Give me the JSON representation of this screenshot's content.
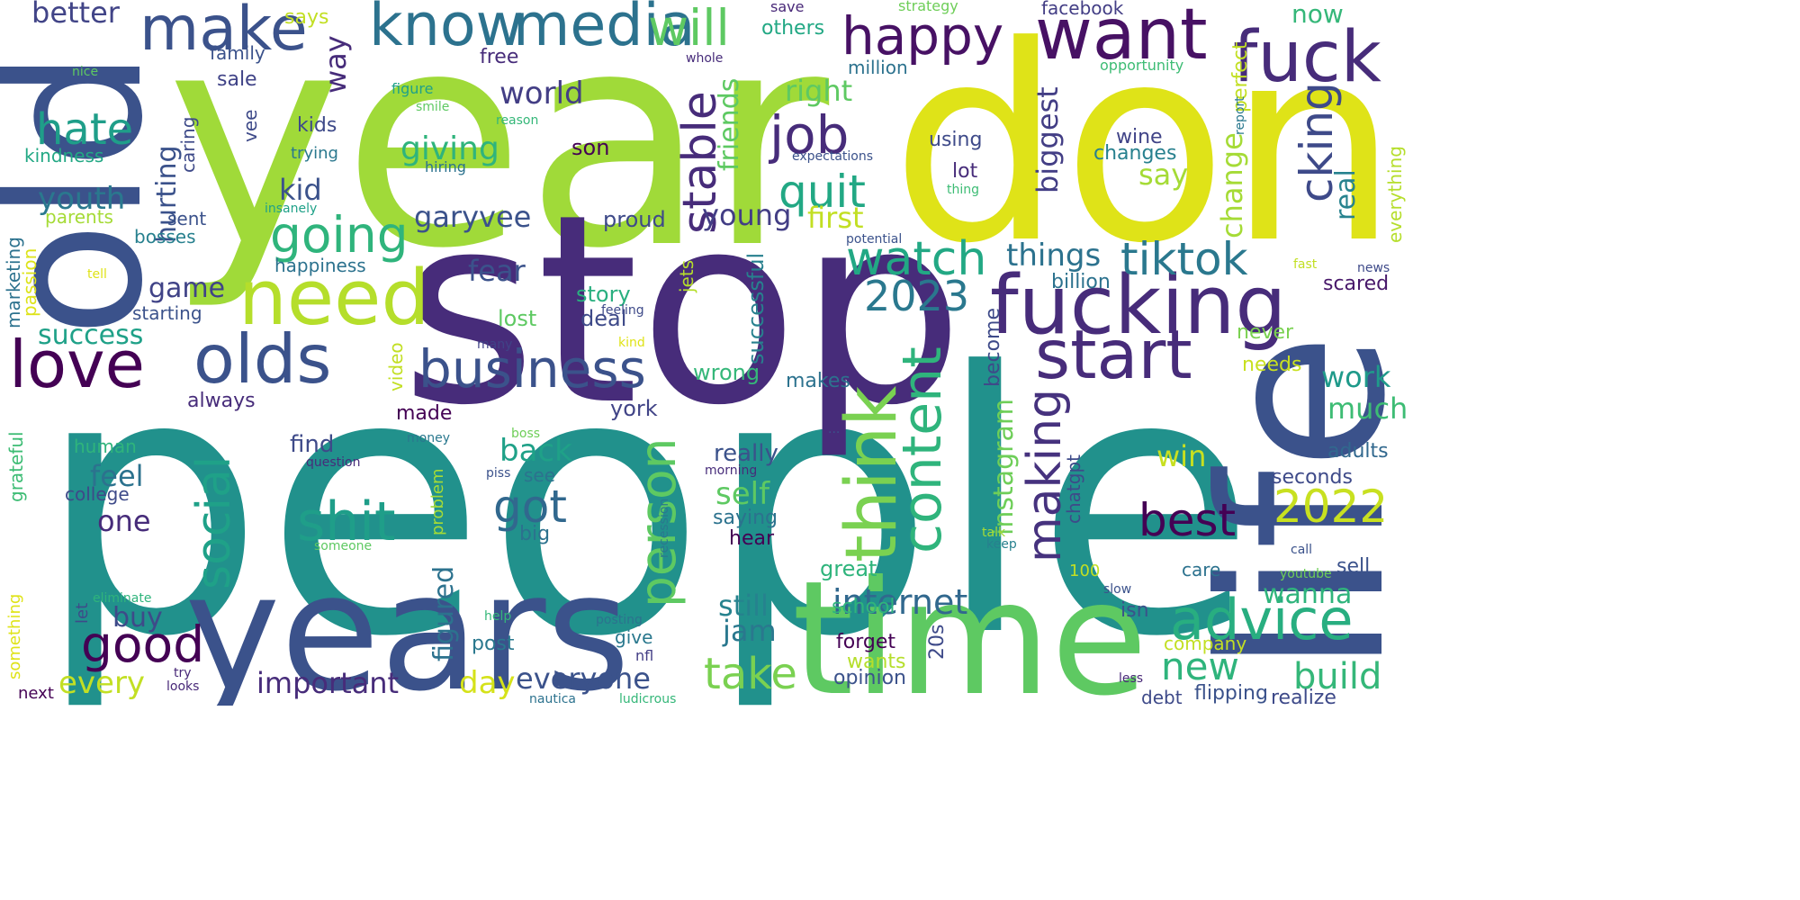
{
  "words": [
    {
      "text": "people",
      "color": "#21918c"
    },
    {
      "text": "year",
      "color": "#a0da39"
    },
    {
      "text": "don",
      "color": "#dfe318"
    },
    {
      "text": "stop",
      "color": "#472c7a"
    },
    {
      "text": "life",
      "color": "#3b528b"
    },
    {
      "text": "old",
      "color": "#3b528b"
    },
    {
      "text": "years",
      "color": "#3b528b"
    },
    {
      "text": "time",
      "color": "#5ec962"
    },
    {
      "text": "want",
      "color": "#471164"
    },
    {
      "text": "fuck",
      "color": "#472c7a"
    },
    {
      "text": "fucking",
      "color": "#472c7a"
    },
    {
      "text": "know",
      "color": "#2c728e"
    },
    {
      "text": "media",
      "color": "#2c728e"
    },
    {
      "text": "make",
      "color": "#3b528b"
    },
    {
      "text": "will",
      "color": "#5ec962"
    },
    {
      "text": "happy",
      "color": "#471164"
    },
    {
      "text": "need",
      "color": "#b5de2b"
    },
    {
      "text": "olds",
      "color": "#3b528b"
    },
    {
      "text": "love",
      "color": "#440154"
    },
    {
      "text": "business",
      "color": "#3b528b"
    },
    {
      "text": "think",
      "color": "#7ad151"
    },
    {
      "text": "start",
      "color": "#472c7a"
    },
    {
      "text": "content",
      "color": "#2fb47c"
    },
    {
      "text": "advice",
      "color": "#28ae80"
    },
    {
      "text": "shit",
      "color": "#1f9e89"
    },
    {
      "text": "good",
      "color": "#440154"
    },
    {
      "text": "job",
      "color": "#472c7a"
    },
    {
      "text": "quit",
      "color": "#22a884"
    },
    {
      "text": "going",
      "color": "#2fb47c"
    },
    {
      "text": "watch",
      "color": "#22a884"
    },
    {
      "text": "social",
      "color": "#1fa188"
    },
    {
      "text": "person",
      "color": "#5ec962"
    },
    {
      "text": "stable",
      "color": "#472c7a"
    },
    {
      "text": "tiktok",
      "color": "#2a788e"
    },
    {
      "text": "cking",
      "color": "#3e4a89"
    },
    {
      "text": "making",
      "color": "#46327e"
    },
    {
      "text": "hate",
      "color": "#1f9e89"
    },
    {
      "text": "take",
      "color": "#7ad151"
    },
    {
      "text": "best",
      "color": "#440154"
    },
    {
      "text": "2023",
      "color": "#2a788e"
    },
    {
      "text": "2022",
      "color": "#c8e020"
    },
    {
      "text": "got",
      "color": "#31688e"
    },
    {
      "text": "important",
      "color": "#472c7a"
    },
    {
      "text": "everyone",
      "color": "#3b528b"
    },
    {
      "text": "internet",
      "color": "#31688e"
    },
    {
      "text": "new",
      "color": "#2fb47c"
    },
    {
      "text": "build",
      "color": "#35b779"
    },
    {
      "text": "instagram",
      "color": "#6ece58"
    },
    {
      "text": "better",
      "color": "#414487"
    },
    {
      "text": "youth",
      "color": "#2a788e"
    },
    {
      "text": "fear",
      "color": "#3b528b"
    },
    {
      "text": "world",
      "color": "#433e85"
    },
    {
      "text": "giving",
      "color": "#2fb47c"
    },
    {
      "text": "garyvee",
      "color": "#3b528b"
    },
    {
      "text": "friends",
      "color": "#5ec962"
    },
    {
      "text": "right",
      "color": "#5ec962"
    },
    {
      "text": "first",
      "color": "#c2df23"
    },
    {
      "text": "young",
      "color": "#433e85"
    },
    {
      "text": "things",
      "color": "#2c728e"
    },
    {
      "text": "biggest",
      "color": "#433e85"
    },
    {
      "text": "change",
      "color": "#a5db36"
    },
    {
      "text": "real",
      "color": "#26828e"
    },
    {
      "text": "say",
      "color": "#a5db36"
    },
    {
      "text": "work",
      "color": "#1f9a8a"
    },
    {
      "text": "much",
      "color": "#3dbc74"
    },
    {
      "text": "win",
      "color": "#c8e020"
    },
    {
      "text": "feel",
      "color": "#2c728e"
    },
    {
      "text": "one",
      "color": "#472c7a"
    },
    {
      "text": "buy",
      "color": "#3e4a89"
    },
    {
      "text": "back",
      "color": "#1fa188"
    },
    {
      "text": "self",
      "color": "#5ec962"
    },
    {
      "text": "still",
      "color": "#26828e"
    },
    {
      "text": "jam",
      "color": "#2a788e"
    },
    {
      "text": "wanna",
      "color": "#2fb47c"
    },
    {
      "text": "kid",
      "color": "#3b528b"
    },
    {
      "text": "game",
      "color": "#404387"
    },
    {
      "text": "hurting",
      "color": "#3b528b"
    },
    {
      "text": "success",
      "color": "#1fa188"
    },
    {
      "text": "every",
      "color": "#c2df23"
    },
    {
      "text": "day",
      "color": "#d5e21a"
    },
    {
      "text": "figured",
      "color": "#2c728e"
    },
    {
      "text": "story",
      "color": "#29af7f"
    },
    {
      "text": "deal",
      "color": "#3e4a89"
    },
    {
      "text": "lost",
      "color": "#5ec962"
    },
    {
      "text": "proud",
      "color": "#3e4a89"
    },
    {
      "text": "son",
      "color": "#440154"
    },
    {
      "text": "find",
      "color": "#3e4a89"
    },
    {
      "text": "made",
      "color": "#440154"
    },
    {
      "text": "york",
      "color": "#414487"
    },
    {
      "text": "really",
      "color": "#3b528b"
    },
    {
      "text": "saying",
      "color": "#2c728e"
    },
    {
      "text": "hear",
      "color": "#440154"
    },
    {
      "text": "successful",
      "color": "#27808e"
    },
    {
      "text": "wrong",
      "color": "#35b779"
    },
    {
      "text": "makes",
      "color": "#2c728e"
    },
    {
      "text": "become",
      "color": "#3e4a89"
    },
    {
      "text": "billion",
      "color": "#2c728e"
    },
    {
      "text": "never",
      "color": "#7ad151"
    },
    {
      "text": "scared",
      "color": "#48186a"
    },
    {
      "text": "needs",
      "color": "#c8e020"
    },
    {
      "text": "perfect",
      "color": "#c2df23"
    },
    {
      "text": "now",
      "color": "#35b779"
    },
    {
      "text": "facebook",
      "color": "#433e85"
    },
    {
      "text": "opportunity",
      "color": "#3dbc74"
    },
    {
      "text": "report",
      "color": "#2a788e"
    },
    {
      "text": "everything",
      "color": "#b5de2b"
    },
    {
      "text": "news",
      "color": "#3e4a89"
    },
    {
      "text": "fast",
      "color": "#c2df23"
    },
    {
      "text": "strategy",
      "color": "#6ece58"
    },
    {
      "text": "save",
      "color": "#482878"
    },
    {
      "text": "others",
      "color": "#22a884"
    },
    {
      "text": "whole",
      "color": "#472c7a"
    },
    {
      "text": "million",
      "color": "#2c728e"
    },
    {
      "text": "says",
      "color": "#c2df23"
    },
    {
      "text": "family",
      "color": "#3b528b"
    },
    {
      "text": "sale",
      "color": "#404387"
    },
    {
      "text": "free",
      "color": "#472c7a"
    },
    {
      "text": "way",
      "color": "#472c7a"
    },
    {
      "text": "nice",
      "color": "#5ec962"
    },
    {
      "text": "figure",
      "color": "#1fa188"
    },
    {
      "text": "smile",
      "color": "#5ec962"
    },
    {
      "text": "reason",
      "color": "#35b779"
    },
    {
      "text": "kids",
      "color": "#3e4a89"
    },
    {
      "text": "trying",
      "color": "#2a788e"
    },
    {
      "text": "hiring",
      "color": "#2c728e"
    },
    {
      "text": "vee",
      "color": "#3e4a89"
    },
    {
      "text": "caring",
      "color": "#3e4a89"
    },
    {
      "text": "kindness",
      "color": "#22a884"
    },
    {
      "text": "sent",
      "color": "#3b528b"
    },
    {
      "text": "bosses",
      "color": "#27808e"
    },
    {
      "text": "parents",
      "color": "#a5db36"
    },
    {
      "text": "happiness",
      "color": "#2c728e"
    },
    {
      "text": "starting",
      "color": "#3b528b"
    },
    {
      "text": "marketing",
      "color": "#2c728e"
    },
    {
      "text": "passion",
      "color": "#dde318"
    },
    {
      "text": "tell",
      "color": "#dfe318"
    },
    {
      "text": "always",
      "color": "#472c7a"
    },
    {
      "text": "using",
      "color": "#3e4a89"
    },
    {
      "text": "lot",
      "color": "#472c7a"
    },
    {
      "text": "wine",
      "color": "#404387"
    },
    {
      "text": "changes",
      "color": "#27808e"
    },
    {
      "text": "expectations",
      "color": "#3b528b"
    },
    {
      "text": "thing",
      "color": "#3dbc74"
    },
    {
      "text": "insanely",
      "color": "#1fa188"
    },
    {
      "text": "potential",
      "color": "#3b528b"
    },
    {
      "text": "jets",
      "color": "#b5de2b"
    },
    {
      "text": "feeling",
      "color": "#3e4a89"
    },
    {
      "text": "video",
      "color": "#c2df23"
    },
    {
      "text": "many",
      "color": "#404387"
    },
    {
      "text": "kind",
      "color": "#dfe318"
    },
    {
      "text": "money",
      "color": "#2a788e"
    },
    {
      "text": "boss",
      "color": "#6ece58"
    },
    {
      "text": "question",
      "color": "#472c7a"
    },
    {
      "text": "piss",
      "color": "#3b528b"
    },
    {
      "text": "see",
      "color": "#2c728e"
    },
    {
      "text": "big",
      "color": "#2c728e"
    },
    {
      "text": "problem",
      "color": "#a5db36"
    },
    {
      "text": "human",
      "color": "#2fb47c"
    },
    {
      "text": "college",
      "color": "#3e4a89"
    },
    {
      "text": "grateful",
      "color": "#3dbc74"
    },
    {
      "text": "something",
      "color": "#dfe318"
    },
    {
      "text": "let",
      "color": "#3e4a89"
    },
    {
      "text": "next",
      "color": "#440154"
    },
    {
      "text": "eliminate",
      "color": "#2fb47c"
    },
    {
      "text": "someone",
      "color": "#5ec962"
    },
    {
      "text": "help",
      "color": "#35b779"
    },
    {
      "text": "try",
      "color": "#482878"
    },
    {
      "text": "looks",
      "color": "#482878"
    },
    {
      "text": "post",
      "color": "#2a788e"
    },
    {
      "text": "give",
      "color": "#2a788e"
    },
    {
      "text": "posting",
      "color": "#2c728e"
    },
    {
      "text": "nfl",
      "color": "#433e85"
    },
    {
      "text": "nautica",
      "color": "#2c728e"
    },
    {
      "text": "ludicrous",
      "color": "#35b779"
    },
    {
      "text": "recession",
      "color": "#2a788e"
    },
    {
      "text": "morning",
      "color": "#472c7a"
    },
    {
      "text": "great",
      "color": "#2fb47c"
    },
    {
      "text": "100",
      "color": "#c2df23"
    },
    {
      "text": "school",
      "color": "#2fb47c"
    },
    {
      "text": "forget",
      "color": "#440154"
    },
    {
      "text": "wants",
      "color": "#b5de2b"
    },
    {
      "text": "opinion",
      "color": "#3b528b"
    },
    {
      "text": "20s",
      "color": "#3e4a89"
    },
    {
      "text": "isn",
      "color": "#3b528b"
    },
    {
      "text": "slow",
      "color": "#3b528b"
    },
    {
      "text": "talk",
      "color": "#a5db36"
    },
    {
      "text": "keep",
      "color": "#27808e"
    },
    {
      "text": "chatgpt",
      "color": "#3e4a89"
    },
    {
      "text": "company",
      "color": "#c2df23"
    },
    {
      "text": "care",
      "color": "#2c728e"
    },
    {
      "text": "debt",
      "color": "#3e4a89"
    },
    {
      "text": "flipping",
      "color": "#3b528b"
    },
    {
      "text": "less",
      "color": "#482878"
    },
    {
      "text": "realize",
      "color": "#3e4a89"
    },
    {
      "text": "sell",
      "color": "#3b528b"
    },
    {
      "text": "seconds",
      "color": "#3e4a89"
    },
    {
      "text": "adults",
      "color": "#31688e"
    },
    {
      "text": "call",
      "color": "#3b528b"
    },
    {
      "text": "youtube",
      "color": "#6ece58"
    },
    {
      "text": "···",
      "color": "#3b528b"
    }
  ]
}
